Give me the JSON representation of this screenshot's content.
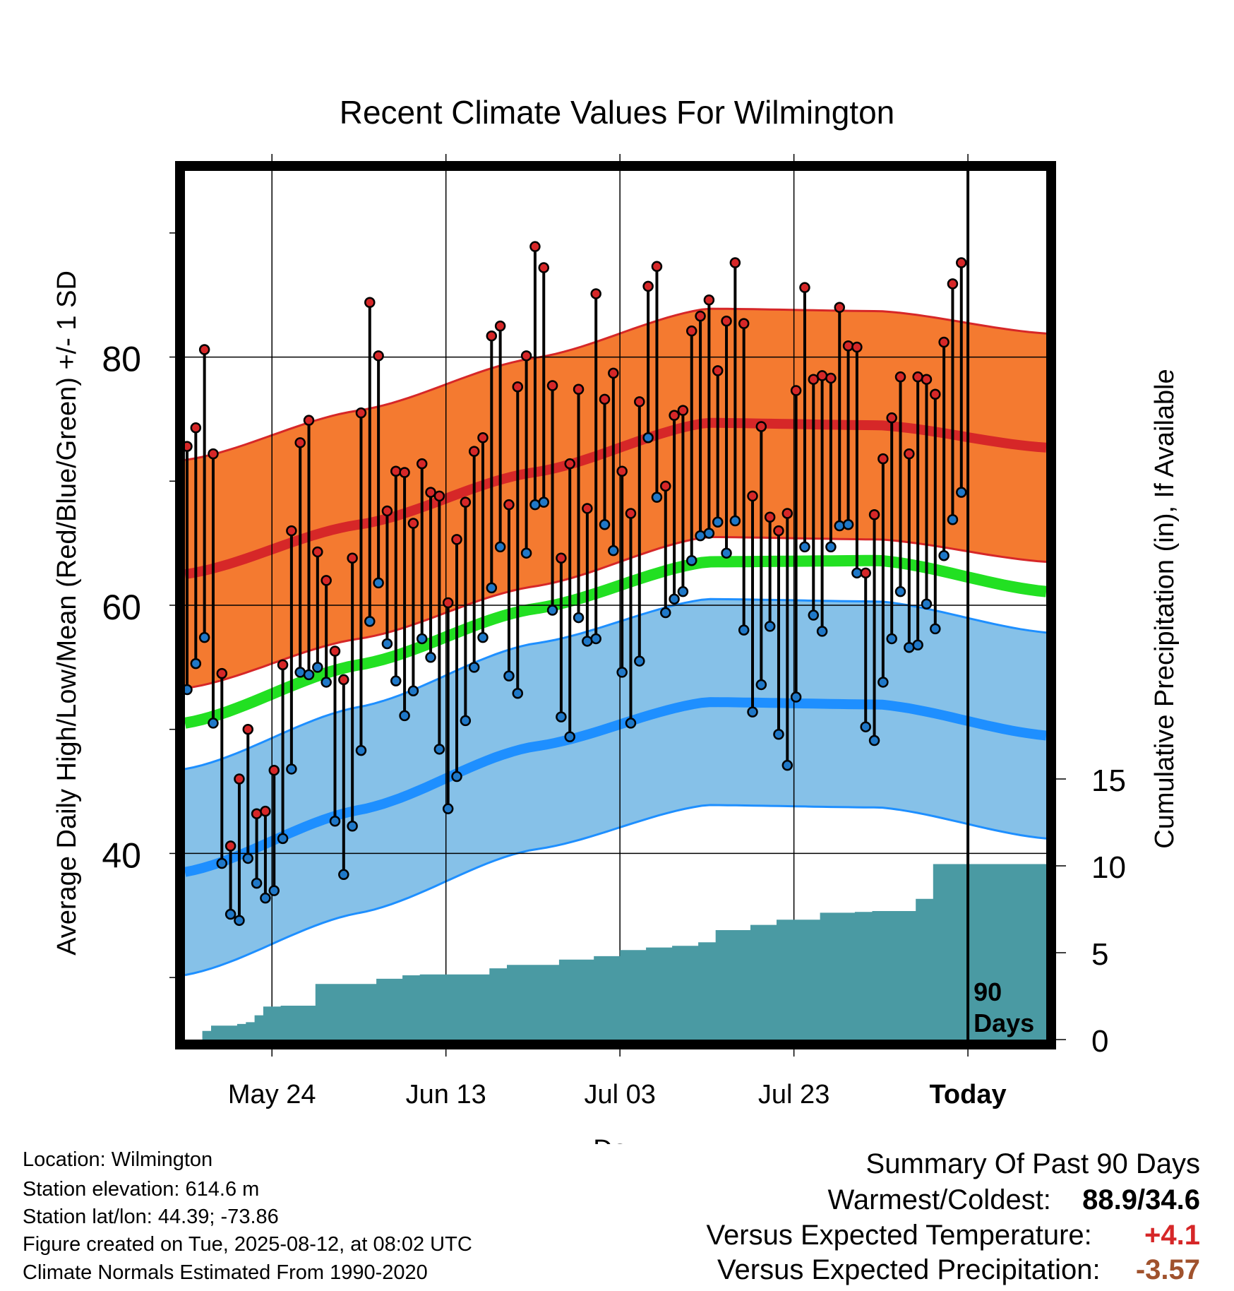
{
  "title": "Recent Climate Values For Wilmington",
  "colors": {
    "high_band": "#f47a30",
    "high_band_edge": "#d62728",
    "high_mean": "#d62728",
    "low_band": "#86c1e8",
    "low_band_edge": "#1e8fff",
    "low_mean": "#1e8fff",
    "mean_line": "#22e022",
    "precip_fill": "#4a9aa3",
    "high_dot": "#d62728",
    "low_dot": "#1f78c8",
    "anomaly_temp": "#d62728",
    "anomaly_precip": "#a0522d"
  },
  "chart_data": {
    "type": "line",
    "title": "Recent Climate Values For Wilmington",
    "xlabel": "Day",
    "ylabel": "Average Daily High/Low/Mean (Red/Blue/Green) +/- 1 SD",
    "y2label": "Cumulative Precipitation (in), If Available",
    "x_ticks": [
      "May 24",
      "Jun 13",
      "Jul 03",
      "Jul 23",
      "Today"
    ],
    "y_ticks": [
      "40",
      "60",
      "80"
    ],
    "y2_ticks": [
      "0",
      "5",
      "10",
      "15"
    ],
    "ylim": [
      25,
      95
    ],
    "y2lim": [
      0,
      50
    ],
    "today_marker": "90\nDays",
    "x_dates": [
      "2025-05-14",
      "2025-08-21"
    ],
    "normal_high": {
      "x": [
        "2025-05-14",
        "2025-06-03",
        "2025-06-23",
        "2025-07-13",
        "2025-08-02",
        "2025-08-21"
      ],
      "mean": [
        62.5,
        66.5,
        70.7,
        74.7,
        74.5,
        72.7
      ],
      "sd": 9.2
    },
    "normal_low": {
      "x": [
        "2025-05-14",
        "2025-06-03",
        "2025-06-23",
        "2025-07-13",
        "2025-08-02",
        "2025-08-21"
      ],
      "mean": [
        38.5,
        43.5,
        48.6,
        52.2,
        52.0,
        49.5
      ],
      "sd": 8.3
    },
    "normal_mean": {
      "x": [
        "2025-05-14",
        "2025-06-03",
        "2025-06-23",
        "2025-07-13",
        "2025-08-02",
        "2025-08-21"
      ],
      "values": [
        50.5,
        55.2,
        59.7,
        63.5,
        63.6,
        61.1
      ]
    },
    "daily_dates_start": "2025-05-14",
    "daily_high": [
      72.8,
      74.3,
      80.6,
      72.2,
      54.5,
      40.6,
      46,
      50,
      43.2,
      43.4,
      46.7,
      55.2,
      66,
      73.1,
      74.9,
      64.3,
      62,
      56.3,
      54,
      63.8,
      75.5,
      84.4,
      80.1,
      67.6,
      70.8,
      70.7,
      66.6,
      71.4,
      69.1,
      68.8,
      60.2,
      65.3,
      68.3,
      72.4,
      73.5,
      81.7,
      82.5,
      68.1,
      77.6,
      80.1,
      88.9,
      87.2,
      77.7,
      63.8,
      71.4,
      77.4,
      67.8,
      85.1,
      76.6,
      78.7,
      70.8,
      67.4,
      76.4,
      85.7,
      87.3,
      69.6,
      75.3,
      75.7,
      82.1,
      83.3,
      84.6,
      78.9,
      82.9,
      87.6,
      82.7,
      68.8,
      74.4,
      67.1,
      66,
      67.4,
      77.3,
      85.6,
      78.2,
      78.5,
      78.3,
      84,
      80.9,
      80.8,
      62.6,
      67.3,
      71.8,
      75.1,
      78.4,
      72.2,
      78.4,
      78.2,
      77,
      81.2,
      85.9,
      87.6
    ],
    "daily_low": [
      53.2,
      55.3,
      57.4,
      50.5,
      39.2,
      35.1,
      34.6,
      39.6,
      37.6,
      36.4,
      37,
      41.2,
      46.8,
      54.6,
      54.4,
      55,
      53.8,
      42.6,
      38.3,
      42.2,
      48.3,
      58.7,
      61.8,
      56.9,
      53.9,
      51.1,
      53.1,
      57.3,
      55.8,
      48.4,
      43.6,
      46.2,
      50.7,
      55,
      57.4,
      61.4,
      64.7,
      54.3,
      52.9,
      64.2,
      68.1,
      68.3,
      59.6,
      51,
      49.4,
      59,
      57.1,
      57.3,
      66.5,
      64.4,
      54.6,
      50.5,
      55.5,
      73.5,
      68.7,
      59.4,
      60.5,
      61.1,
      63.6,
      65.6,
      65.8,
      66.7,
      64.2,
      66.8,
      58,
      51.4,
      53.6,
      58.3,
      49.6,
      47.1,
      52.6,
      64.7,
      59.2,
      57.9,
      64.7,
      66.4,
      66.5,
      62.6,
      50.2,
      49.1,
      53.8,
      57.3,
      61.1,
      56.6,
      56.8,
      60.1,
      58.1,
      64,
      66.9,
      69.1
    ],
    "precip_cumulative": {
      "x": [
        "2025-05-14",
        "2025-05-15",
        "2025-05-16",
        "2025-05-17",
        "2025-05-20",
        "2025-05-21",
        "2025-05-22",
        "2025-05-23",
        "2025-05-25",
        "2025-05-29",
        "2025-05-30",
        "2025-06-05",
        "2025-06-08",
        "2025-06-10",
        "2025-06-18",
        "2025-06-20",
        "2025-06-26",
        "2025-06-30",
        "2025-07-03",
        "2025-07-06",
        "2025-07-09",
        "2025-07-12",
        "2025-07-14",
        "2025-07-18",
        "2025-07-21",
        "2025-07-24",
        "2025-07-26",
        "2025-07-30",
        "2025-08-01",
        "2025-08-03",
        "2025-08-06",
        "2025-08-08",
        "2025-08-12",
        "2025-08-21"
      ],
      "values": [
        0,
        0,
        0.5,
        0.8,
        0.9,
        1.0,
        1.4,
        1.9,
        1.95,
        3.2,
        3.2,
        3.5,
        3.7,
        3.75,
        4.1,
        4.3,
        4.6,
        4.8,
        5.15,
        5.3,
        5.4,
        5.6,
        6.3,
        6.6,
        6.9,
        6.9,
        7.3,
        7.35,
        7.4,
        7.4,
        8.1,
        10.1,
        10.1,
        10.1
      ]
    }
  },
  "footer": {
    "location": "Location: Wilmington",
    "elevation": "Station elevation: 614.6 m",
    "latlon": "Station lat/lon: 44.39; -73.86",
    "created": "Figure created on Tue, 2025-08-12, at 08:02 UTC",
    "normals": "Climate Normals Estimated From 1990-2020"
  },
  "summary": {
    "title": "Summary Of Past 90 Days",
    "warm_cold_label": "Warmest/Coldest:",
    "warm_cold_value": "88.9/34.6",
    "temp_label": "Versus Expected Temperature:",
    "temp_value": "+4.1",
    "precip_label": "Versus Expected Precipitation:",
    "precip_value": "-3.57"
  }
}
